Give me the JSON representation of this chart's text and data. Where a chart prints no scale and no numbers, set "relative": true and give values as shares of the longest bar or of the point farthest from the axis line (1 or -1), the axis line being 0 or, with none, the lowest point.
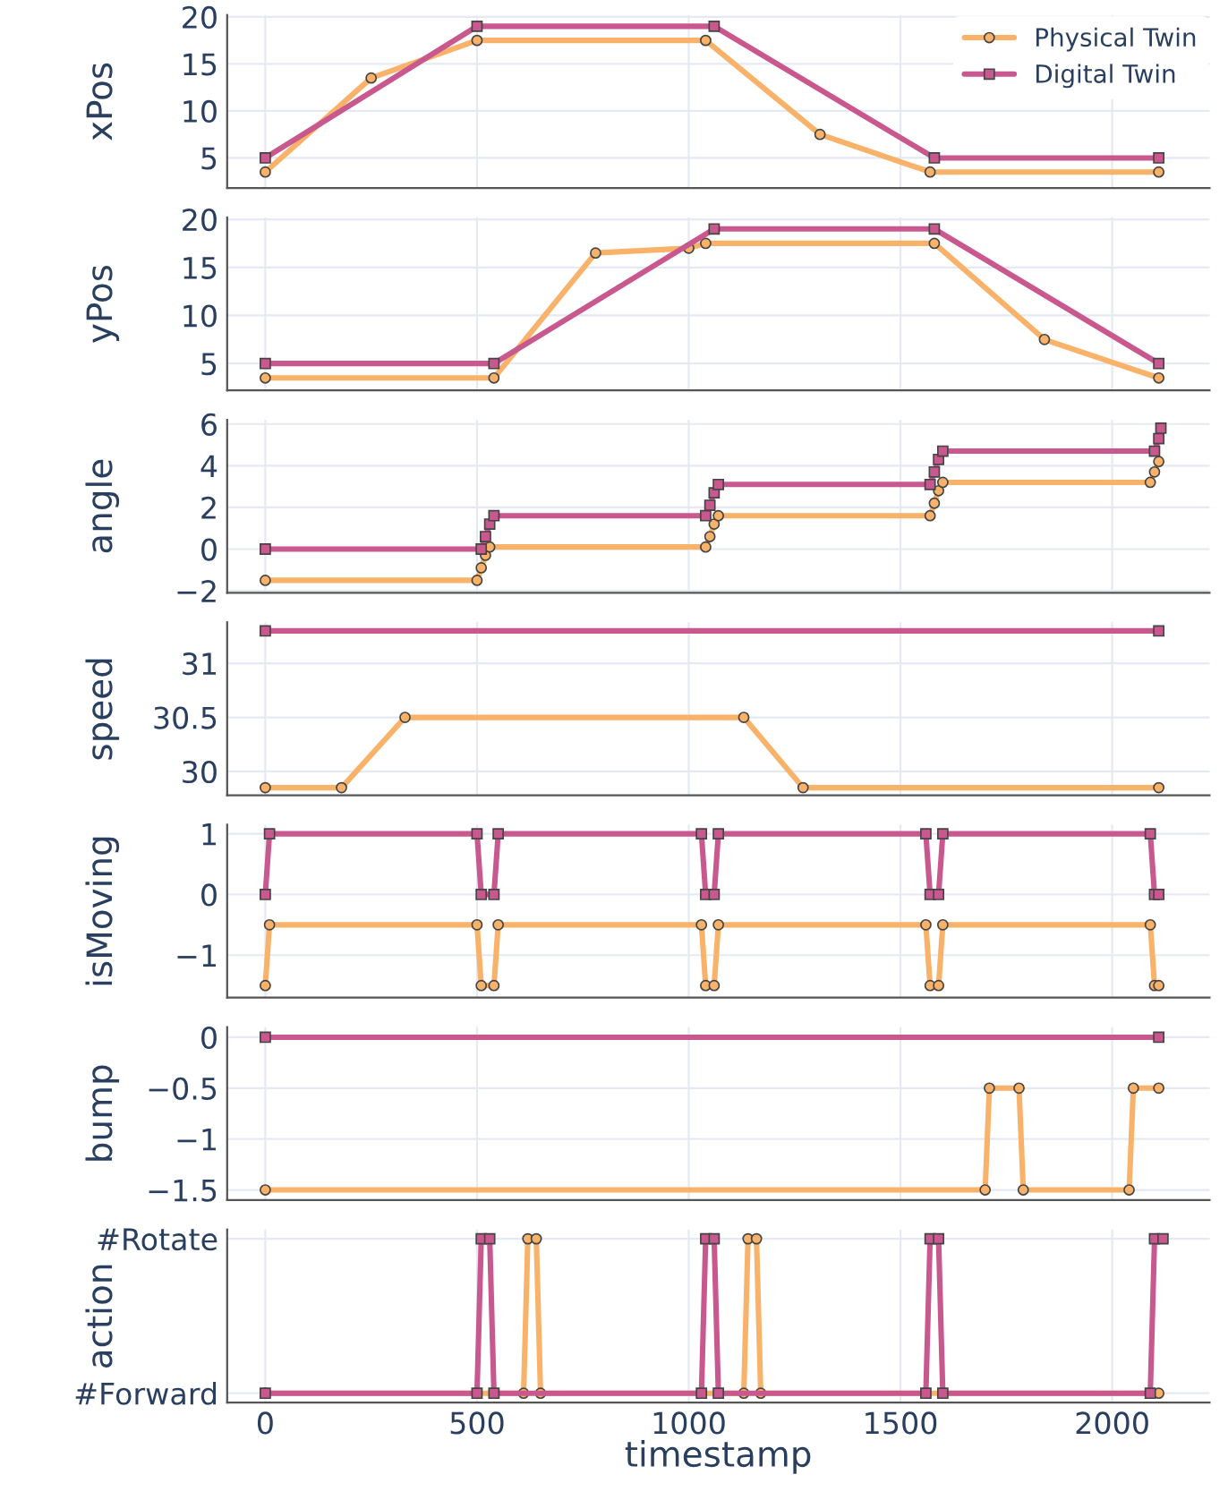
{
  "chart_data": [
    {
      "type": "line",
      "ylabel": "xPos",
      "xlim": [
        -90,
        2230
      ],
      "xticks": [
        0,
        500,
        1000,
        1500,
        2000
      ],
      "ylim": [
        1.8,
        20.2
      ],
      "yticks": [
        5,
        10,
        15,
        20
      ],
      "grid": true,
      "legend": "top right",
      "tick_labels": "y",
      "series": [
        {
          "name": "Physical Twin",
          "color": "#f8b26a",
          "marker": "circle",
          "x": [
            0,
            250,
            500,
            1040,
            1310,
            1570,
            2110
          ],
          "values": [
            3.5,
            13.5,
            17.5,
            17.5,
            7.5,
            3.5,
            3.5
          ]
        },
        {
          "name": "Digital Twin",
          "color": "#c8588e",
          "marker": "square",
          "x": [
            0,
            500,
            1060,
            1580,
            2110
          ],
          "values": [
            5,
            19,
            19,
            5,
            5
          ]
        }
      ]
    },
    {
      "type": "line",
      "ylabel": "yPos",
      "xlim": [
        -90,
        2230
      ],
      "xticks": [
        0,
        500,
        1000,
        1500,
        2000
      ],
      "ylim": [
        2.2,
        20.2
      ],
      "yticks": [
        5,
        10,
        15,
        20
      ],
      "grid": true,
      "tick_labels": "y",
      "series": [
        {
          "color": "#f8b26a",
          "marker": "circle",
          "x": [
            0,
            540,
            780,
            1000,
            1040,
            1580,
            1840,
            2110
          ],
          "values": [
            3.5,
            3.5,
            16.5,
            17,
            17.5,
            17.5,
            7.5,
            3.5
          ]
        },
        {
          "color": "#c8588e",
          "marker": "square",
          "x": [
            0,
            540,
            1060,
            1580,
            2110
          ],
          "values": [
            5,
            5,
            19,
            19,
            5
          ]
        }
      ]
    },
    {
      "type": "line",
      "ylabel": "angle",
      "xlim": [
        -90,
        2230
      ],
      "xticks": [
        0,
        500,
        1000,
        1500,
        2000
      ],
      "ylim": [
        -2.1,
        6.2
      ],
      "yticks": [
        {
          "value": -2,
          "label": "−2"
        },
        0,
        2,
        4,
        6
      ],
      "grid": true,
      "tick_labels": "y",
      "series": [
        {
          "color": "#f8b26a",
          "marker": "circle",
          "x": [
            0,
            500,
            510,
            520,
            530,
            1040,
            1050,
            1060,
            1070,
            1570,
            1580,
            1590,
            1600,
            2090,
            2100,
            2110
          ],
          "values": [
            -1.5,
            -1.5,
            -0.9,
            -0.3,
            0.1,
            0.1,
            0.6,
            1.2,
            1.6,
            1.6,
            2.2,
            2.8,
            3.2,
            3.2,
            3.7,
            4.2
          ]
        },
        {
          "color": "#c8588e",
          "marker": "square",
          "x": [
            0,
            510,
            520,
            530,
            540,
            1040,
            1050,
            1060,
            1070,
            1570,
            1580,
            1590,
            1600,
            2100,
            2110,
            2115
          ],
          "values": [
            0,
            0,
            0.6,
            1.2,
            1.6,
            1.6,
            2.1,
            2.7,
            3.1,
            3.1,
            3.7,
            4.3,
            4.7,
            4.7,
            5.3,
            5.8
          ]
        }
      ]
    },
    {
      "type": "line",
      "ylabel": "speed",
      "xlim": [
        -90,
        2230
      ],
      "xticks": [
        0,
        500,
        1000,
        1500,
        2000
      ],
      "ylim": [
        29.78,
        31.38
      ],
      "yticks": [
        30,
        30.5,
        31
      ],
      "grid": true,
      "tick_labels": "y",
      "series": [
        {
          "color": "#f8b26a",
          "marker": "circle",
          "x": [
            0,
            180,
            330,
            1130,
            1270,
            2110
          ],
          "values": [
            29.85,
            29.85,
            30.5,
            30.5,
            29.85,
            29.85
          ]
        },
        {
          "color": "#c8588e",
          "marker": "square",
          "x": [
            0,
            2110
          ],
          "values": [
            31.3,
            31.3
          ]
        }
      ]
    },
    {
      "type": "line",
      "ylabel": "isMoving",
      "xlim": [
        -90,
        2230
      ],
      "xticks": [
        0,
        500,
        1000,
        1500,
        2000
      ],
      "ylim": [
        -1.7,
        1.15
      ],
      "yticks": [
        {
          "value": -1,
          "label": "−1"
        },
        0,
        1
      ],
      "grid": true,
      "tick_labels": "y",
      "series": [
        {
          "color": "#f8b26a",
          "marker": "circle",
          "x": [
            0,
            10,
            500,
            510,
            540,
            550,
            1030,
            1040,
            1060,
            1070,
            1560,
            1570,
            1590,
            1600,
            2090,
            2100,
            2110
          ],
          "values": [
            -1.5,
            -0.5,
            -0.5,
            -1.5,
            -1.5,
            -0.5,
            -0.5,
            -1.5,
            -1.5,
            -0.5,
            -0.5,
            -1.5,
            -1.5,
            -0.5,
            -0.5,
            -1.5,
            -1.5
          ]
        },
        {
          "color": "#c8588e",
          "marker": "square",
          "x": [
            0,
            10,
            500,
            510,
            540,
            550,
            1030,
            1040,
            1060,
            1070,
            1560,
            1570,
            1590,
            1600,
            2090,
            2100,
            2110
          ],
          "values": [
            0,
            1,
            1,
            0,
            0,
            1,
            1,
            0,
            0,
            1,
            1,
            0,
            0,
            1,
            1,
            0,
            0
          ]
        }
      ]
    },
    {
      "type": "line",
      "ylabel": "bump",
      "xlim": [
        -90,
        2230
      ],
      "xticks": [
        0,
        500,
        1000,
        1500,
        2000
      ],
      "ylim": [
        -1.6,
        0.1
      ],
      "yticks": [
        {
          "value": -1.5,
          "label": "−1.5"
        },
        {
          "value": -1,
          "label": "−1"
        },
        {
          "value": -0.5,
          "label": "−0.5"
        },
        0
      ],
      "grid": true,
      "tick_labels": "y",
      "series": [
        {
          "color": "#f8b26a",
          "marker": "circle",
          "x": [
            0,
            1700,
            1710,
            1780,
            1790,
            2040,
            2050,
            2110
          ],
          "values": [
            -1.5,
            -1.5,
            -0.5,
            -0.5,
            -1.5,
            -1.5,
            -0.5,
            -0.5
          ]
        },
        {
          "color": "#c8588e",
          "marker": "square",
          "x": [
            0,
            2110
          ],
          "values": [
            0,
            0
          ]
        }
      ]
    },
    {
      "type": "line",
      "ylabel": "action",
      "xlabel": "timestamp",
      "xlim": [
        -90,
        2230
      ],
      "xticks": [
        0,
        500,
        1000,
        1500,
        2000
      ],
      "relative": true,
      "annotations": [
        "#Forward",
        "#Rotate"
      ],
      "grid": true,
      "series": [
        {
          "color": "#f8b26a",
          "marker": "circle",
          "x": [
            0,
            610,
            620,
            640,
            650,
            1130,
            1140,
            1160,
            1170,
            2110
          ],
          "values": [
            0,
            0,
            1,
            1,
            0,
            0,
            1,
            1,
            0,
            0
          ]
        },
        {
          "color": "#c8588e",
          "marker": "square",
          "x": [
            0,
            500,
            510,
            530,
            540,
            1030,
            1040,
            1060,
            1070,
            1560,
            1570,
            1590,
            1600,
            2090,
            2100,
            2120
          ],
          "values": [
            0,
            0,
            1,
            1,
            0,
            0,
            1,
            1,
            0,
            0,
            1,
            1,
            0,
            0,
            1,
            1
          ]
        }
      ]
    }
  ]
}
